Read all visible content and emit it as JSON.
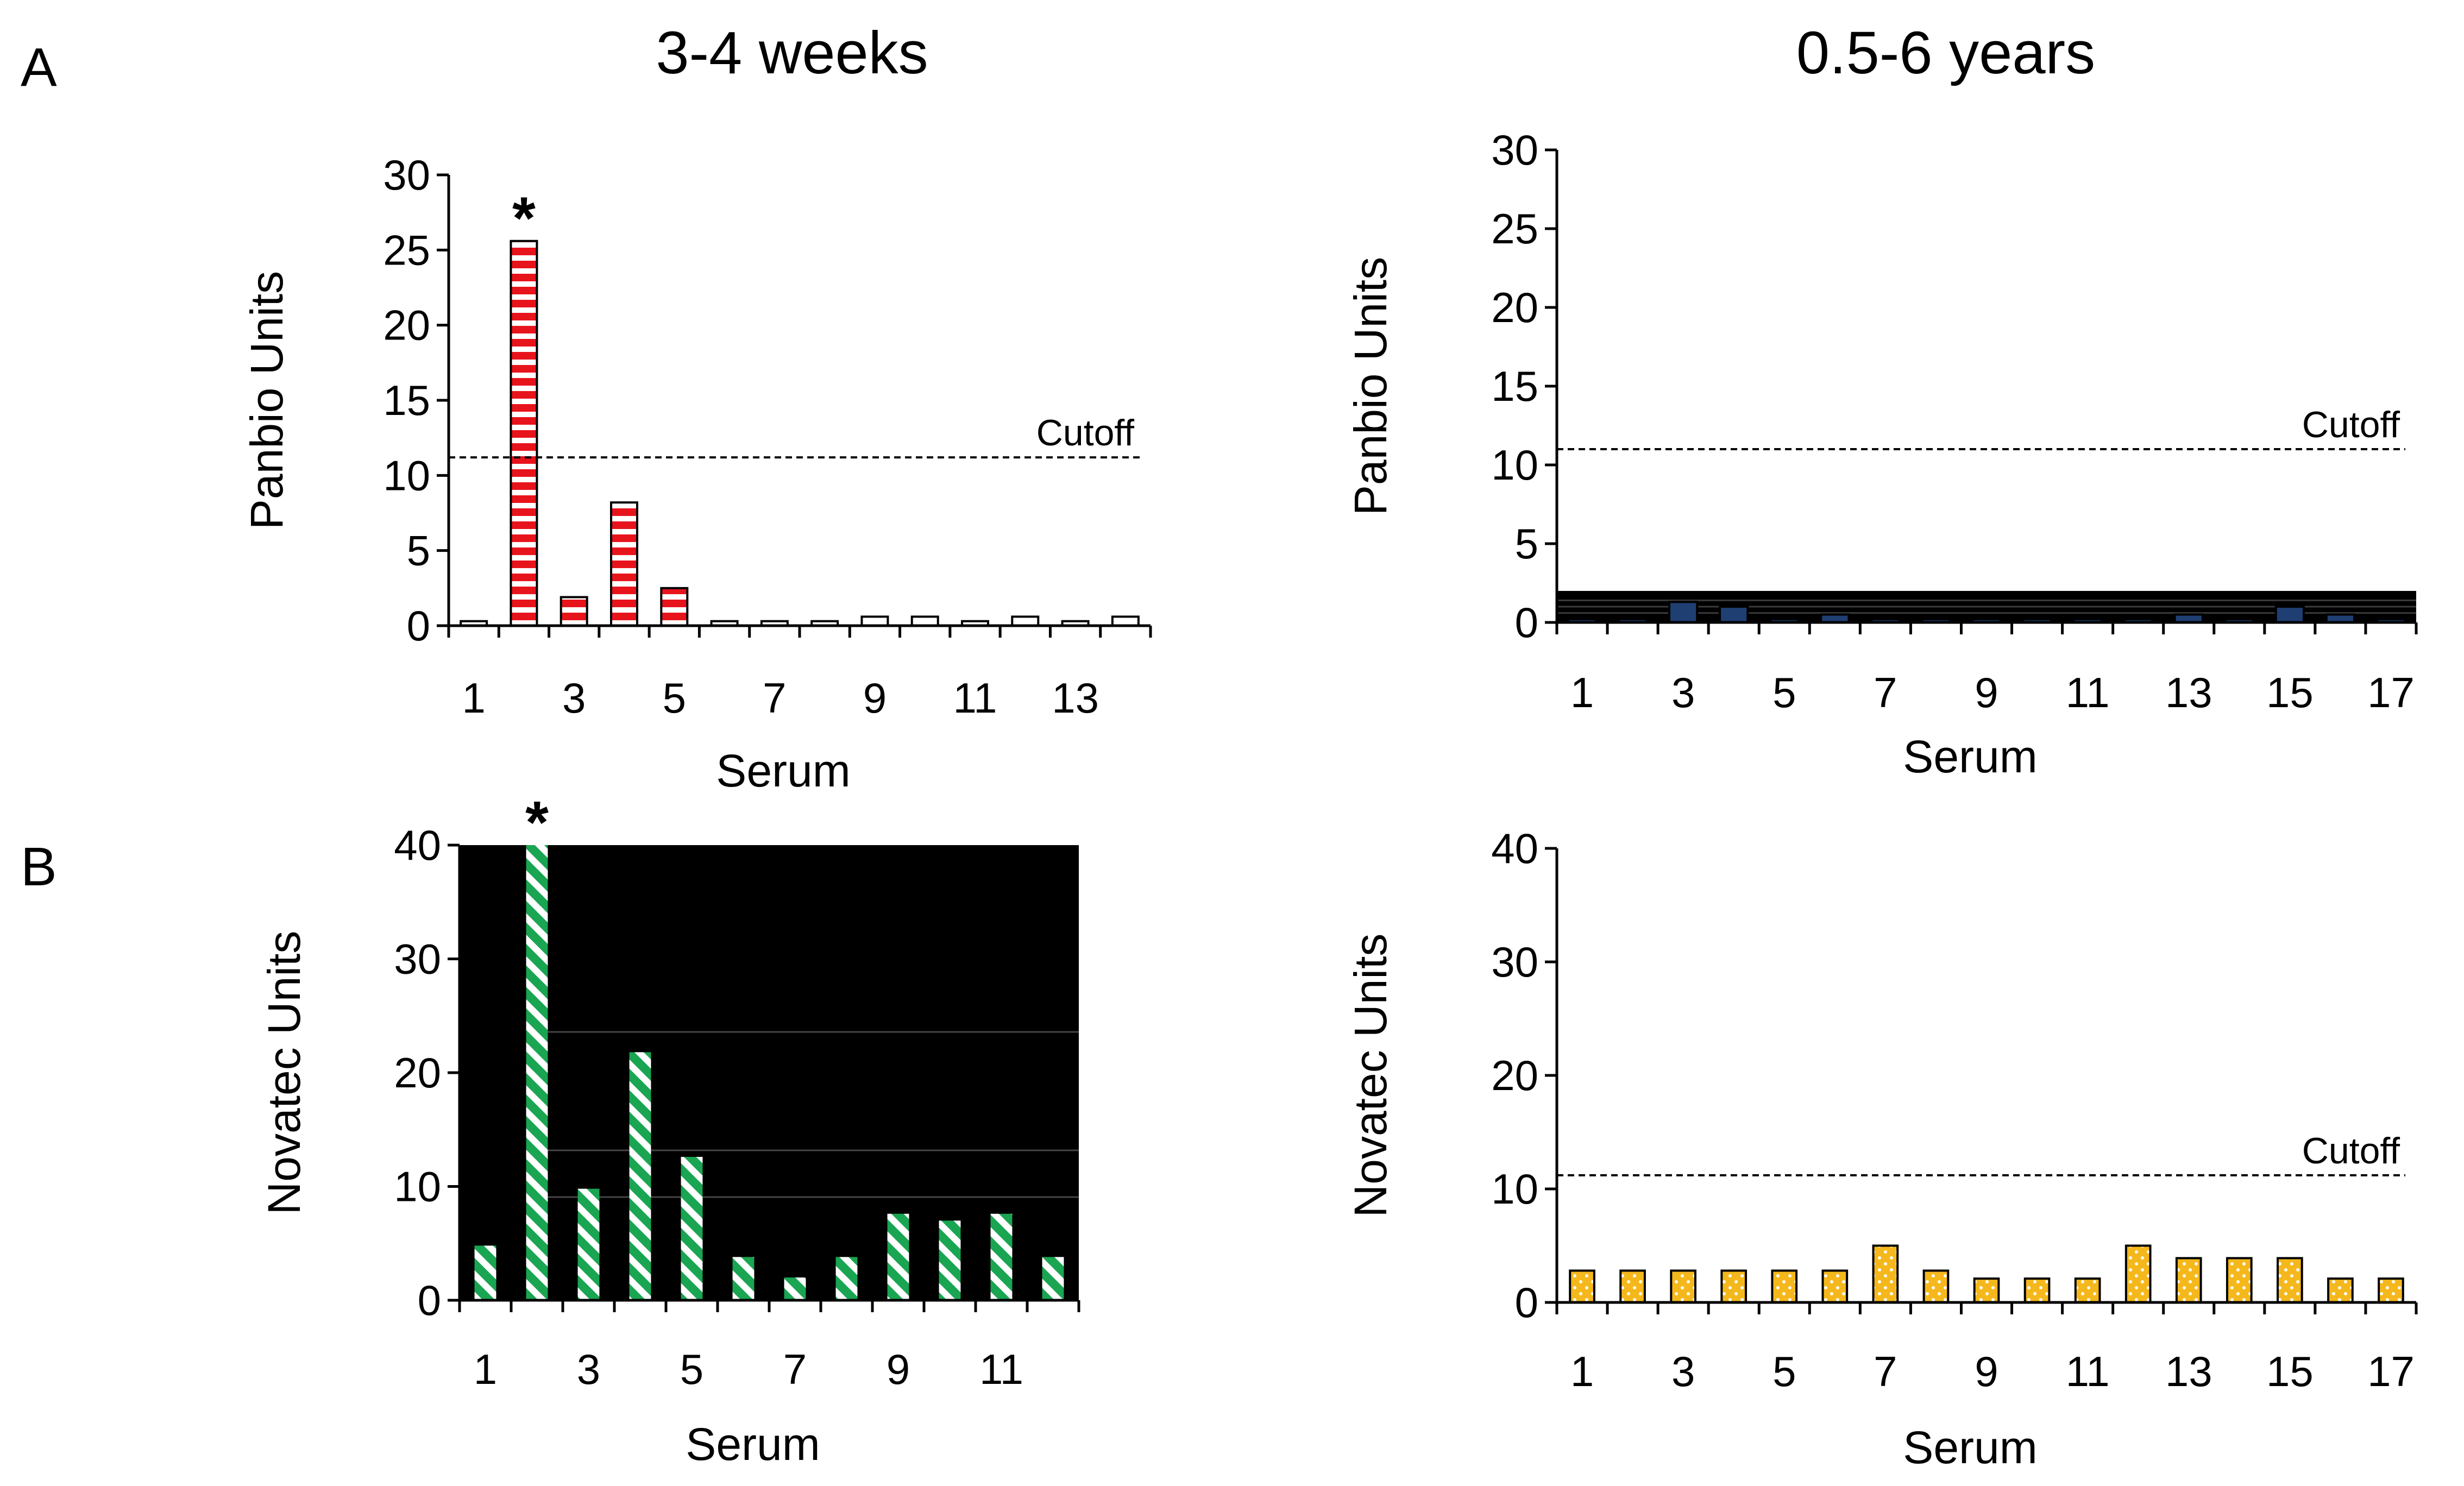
{
  "figure": {
    "panel_letters": [
      "A",
      "B"
    ],
    "column_titles": [
      "3-4 weeks",
      "0.5-6 years"
    ]
  },
  "chart_data": [
    {
      "id": "A-left",
      "type": "bar",
      "ylabel": "Panbio Units",
      "xlabel": "Serum",
      "ylim": [
        0,
        30
      ],
      "yticks": [
        0,
        5,
        10,
        15,
        20,
        25,
        30
      ],
      "xtick_labels": [
        "1",
        "3",
        "5",
        "7",
        "9",
        "11",
        "13"
      ],
      "categories": [
        "1",
        "2",
        "3",
        "4",
        "5",
        "6",
        "7",
        "8",
        "9",
        "10",
        "11",
        "12",
        "13",
        "14"
      ],
      "values": [
        0.3,
        25.6,
        1.9,
        8.2,
        2.5,
        0.3,
        0.3,
        0.3,
        0.6,
        0.6,
        0.3,
        0.6,
        0.3,
        0.6
      ],
      "cutoff": 11.2,
      "cutoff_label": "Cutoff",
      "annotation": {
        "text": "*",
        "category": "2"
      },
      "colors": {
        "highlight": "#e8141c",
        "bar_edge": "#000000"
      }
    },
    {
      "id": "A-right",
      "type": "bar",
      "ylabel": "Panbio Units",
      "xlabel": "Serum",
      "ylim": [
        0,
        30
      ],
      "yticks": [
        0,
        5,
        10,
        15,
        20,
        25,
        30
      ],
      "xtick_labels": [
        "1",
        "3",
        "5",
        "7",
        "9",
        "11",
        "13",
        "15",
        "17"
      ],
      "categories": [
        "1",
        "2",
        "3",
        "4",
        "5",
        "6",
        "7",
        "8",
        "9",
        "10",
        "11",
        "12",
        "13",
        "14",
        "15",
        "16",
        "17"
      ],
      "values": [
        0.2,
        0.2,
        1.3,
        1.0,
        0.2,
        0.5,
        0.2,
        0.2,
        0.2,
        0.2,
        0.2,
        0.2,
        0.5,
        0.2,
        1.0,
        0.5,
        0.2
      ],
      "cutoff": 11.0,
      "cutoff_label": "Cutoff",
      "colors": {
        "bar": "#1f3f73",
        "band": "#000000"
      }
    },
    {
      "id": "B-left",
      "type": "bar",
      "ylabel": "Novatec Units",
      "xlabel": "Serum",
      "ylim": [
        0,
        40
      ],
      "yticks": [
        0,
        10,
        20,
        30,
        40
      ],
      "xtick_labels": [
        "1",
        "3",
        "5",
        "7",
        "9",
        "11"
      ],
      "categories": [
        "1",
        "2",
        "3",
        "4",
        "5",
        "6",
        "7",
        "8",
        "9",
        "10",
        "11",
        "12"
      ],
      "values": [
        4.8,
        40,
        9.8,
        21.8,
        12.6,
        3.8,
        2.0,
        3.8,
        7.6,
        7.0,
        7.6,
        3.8
      ],
      "annotation": {
        "text": "*",
        "category": "2"
      },
      "colors": {
        "bar": "#1aa552",
        "background": "#000000"
      }
    },
    {
      "id": "B-right",
      "type": "bar",
      "ylabel": "Novatec Units",
      "xlabel": "Serum",
      "ylim": [
        0,
        40
      ],
      "yticks": [
        0,
        10,
        20,
        30,
        40
      ],
      "xtick_labels": [
        "1",
        "3",
        "5",
        "7",
        "9",
        "11",
        "13",
        "15",
        "17"
      ],
      "categories": [
        "1",
        "2",
        "3",
        "4",
        "5",
        "6",
        "7",
        "8",
        "9",
        "10",
        "11",
        "12",
        "13",
        "14",
        "15",
        "16",
        "17"
      ],
      "values": [
        2.8,
        2.8,
        2.8,
        2.8,
        2.8,
        2.8,
        5.0,
        2.8,
        2.1,
        2.1,
        2.1,
        5.0,
        3.9,
        3.9,
        3.9,
        2.1,
        2.1
      ],
      "cutoff": 11.2,
      "cutoff_label": "Cutoff",
      "colors": {
        "bar": "#f5b81c",
        "bar_edge": "#000000"
      }
    }
  ]
}
